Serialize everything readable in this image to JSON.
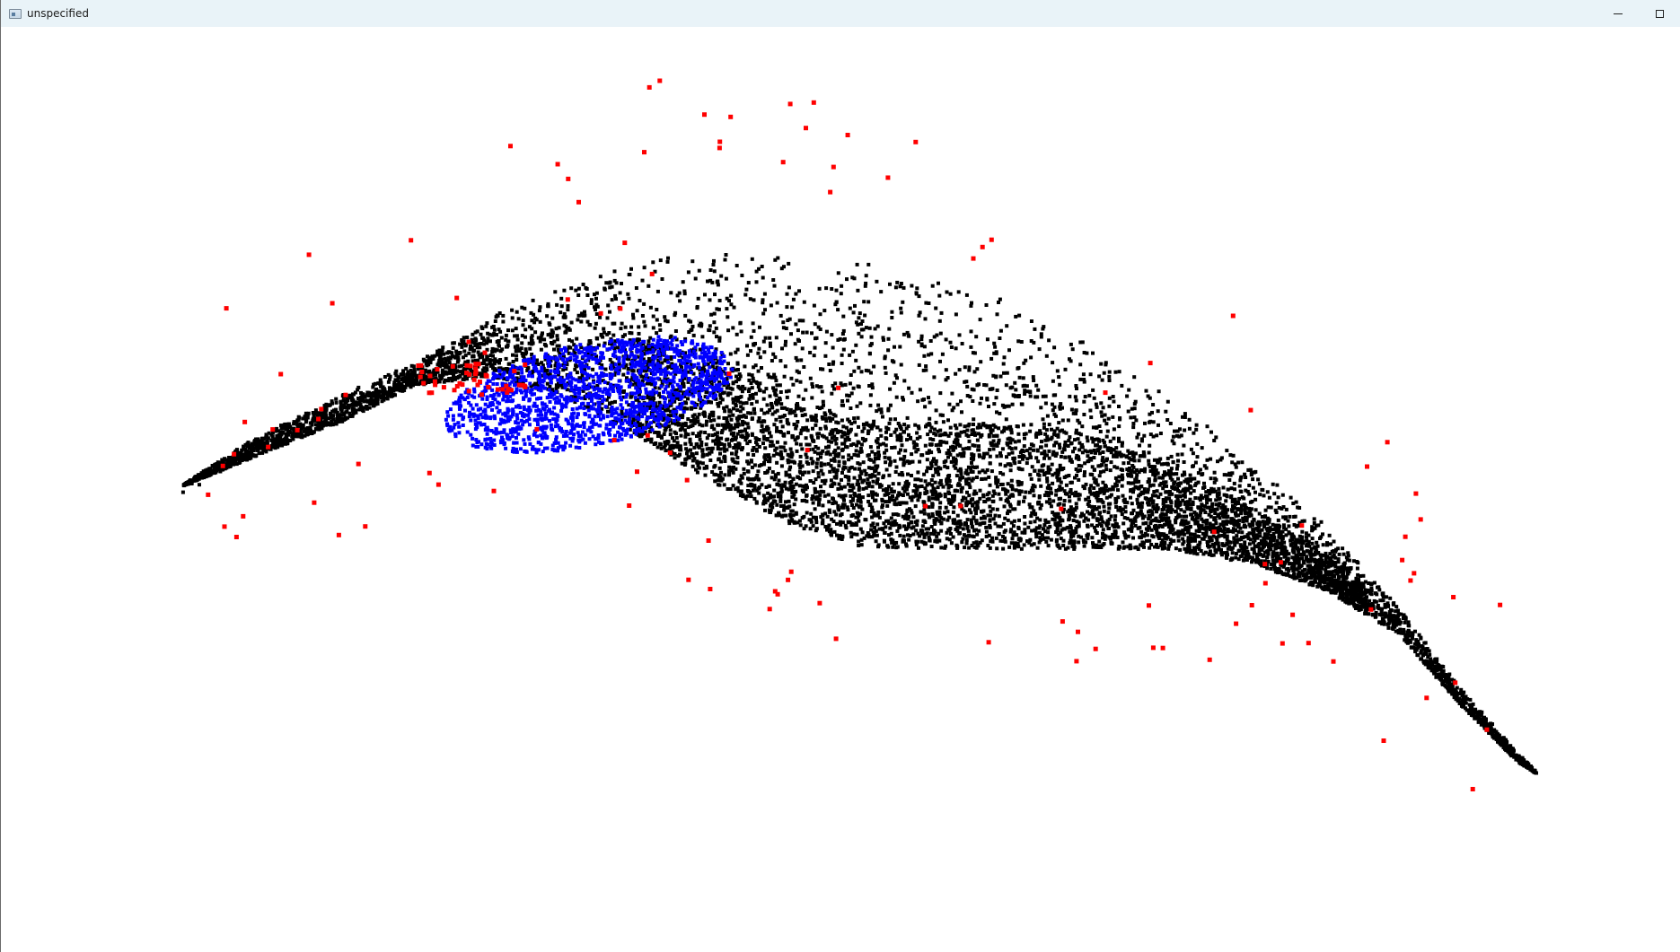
{
  "window": {
    "title": "unspecified",
    "icons": {
      "app": "app-window-icon",
      "minimize": "minimize-icon",
      "maximize": "maximize-icon"
    }
  },
  "colors": {
    "titlebar": "#e9f3f8",
    "background": "#ffffff",
    "points_main": "#000000",
    "points_highlight": "#0000ff",
    "points_outlier": "#ff0000"
  },
  "point_cloud": {
    "legend": "none",
    "axes": "none",
    "series": [
      {
        "color_key": "points_main"
      },
      {
        "color_key": "points_highlight"
      },
      {
        "color_key": "points_outlier"
      }
    ]
  }
}
